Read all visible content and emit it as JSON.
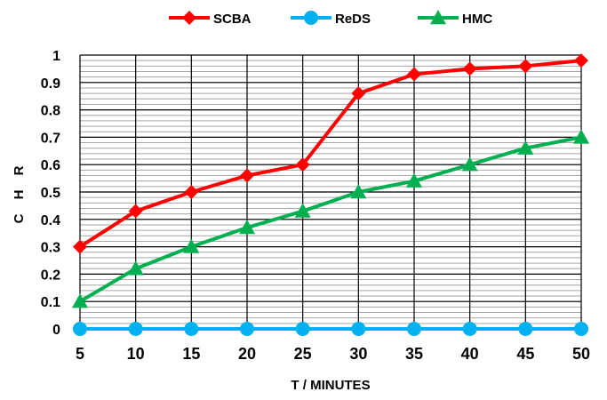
{
  "chart_data": {
    "type": "line",
    "title": "",
    "xlabel": "T / MINUTES",
    "ylabel": "C H R",
    "categories": [
      "5",
      "10",
      "15",
      "20",
      "25",
      "30",
      "35",
      "40",
      "45",
      "50"
    ],
    "ylim": [
      0,
      1
    ],
    "yticks": [
      "0",
      "0.1",
      "0.2",
      "0.3",
      "0.4",
      "0.5",
      "0.6",
      "0.7",
      "0.8",
      "0.9",
      "1"
    ],
    "grid": true,
    "legend_position": "top",
    "series": [
      {
        "name": "SCBA",
        "color": "#ff0000",
        "marker": "diamond",
        "values": [
          0.3,
          0.43,
          0.5,
          0.56,
          0.6,
          0.86,
          0.93,
          0.95,
          0.96,
          0.98
        ]
      },
      {
        "name": "ReDS",
        "color": "#00b0f0",
        "marker": "circle",
        "values": [
          0,
          0,
          0,
          0,
          0,
          0,
          0,
          0,
          0,
          0
        ]
      },
      {
        "name": "HMC",
        "color": "#00b050",
        "marker": "triangle",
        "values": [
          0.1,
          0.22,
          0.3,
          0.37,
          0.43,
          0.5,
          0.54,
          0.6,
          0.66,
          0.7
        ]
      }
    ]
  }
}
